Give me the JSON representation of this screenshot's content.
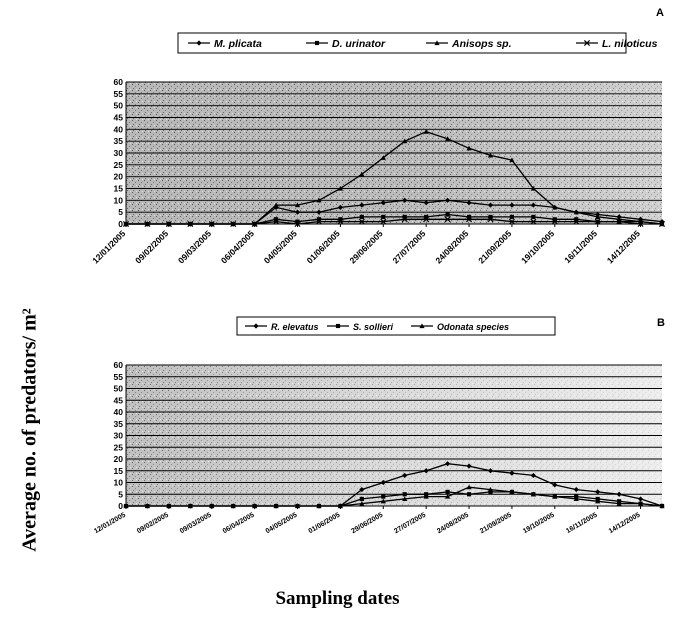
{
  "figure": {
    "ylabel": "Average no. of predators/ m²",
    "xlabel": "Sampling dates"
  },
  "chart_data": [
    {
      "type": "line",
      "panel_label": "A",
      "ylim": [
        0,
        60
      ],
      "yticks": [
        0,
        5,
        10,
        15,
        20,
        25,
        30,
        35,
        40,
        45,
        50,
        55,
        60
      ],
      "grid": true,
      "legend_position": "top",
      "x": [
        "12/01/2005",
        "26/01/2005",
        "09/02/2005",
        "23/02/2005",
        "09/03/2005",
        "23/03/2005",
        "06/04/2005",
        "20/04/2005",
        "04/05/2005",
        "18/05/2005",
        "01/06/2005",
        "15/06/2005",
        "29/06/2005",
        "13/07/2005",
        "27/07/2005",
        "10/08/2005",
        "24/08/2005",
        "07/09/2005",
        "21/09/2005",
        "05/10/2005",
        "19/10/2005",
        "02/11/2005",
        "16/11/2005",
        "30/11/2005",
        "14/12/2005",
        "28/12/2005"
      ],
      "x_tick_labels": [
        "12/01/2005",
        "09/02/2005",
        "09/03/2005",
        "06/04/2005",
        "04/05/2005",
        "01/06/2005",
        "29/06/2005",
        "27/07/2005",
        "24/08/2005",
        "21/09/2005",
        "19/10/2005",
        "16/11/2005",
        "14/12/2005"
      ],
      "series": [
        {
          "name": "M. plicata",
          "marker": "diamond",
          "values": [
            0,
            0,
            0,
            0,
            0,
            0,
            0,
            7,
            5,
            5,
            7,
            8,
            9,
            10,
            9,
            10,
            9,
            8,
            8,
            8,
            7,
            5,
            4,
            3,
            2,
            1
          ]
        },
        {
          "name": "D. urinator",
          "marker": "square",
          "values": [
            0,
            0,
            0,
            0,
            0,
            0,
            0,
            2,
            1,
            2,
            2,
            3,
            3,
            3,
            3,
            4,
            3,
            3,
            3,
            3,
            2,
            2,
            1,
            1,
            1,
            0
          ]
        },
        {
          "name": "Anisops sp.",
          "marker": "triangle",
          "values": [
            0,
            0,
            0,
            0,
            0,
            0,
            0,
            8,
            8,
            10,
            15,
            21,
            28,
            35,
            39,
            36,
            32,
            29,
            27,
            15,
            7,
            5,
            3,
            2,
            1,
            0
          ]
        },
        {
          "name": "L. niloticus",
          "marker": "x",
          "values": [
            0,
            0,
            0,
            0,
            0,
            0,
            0,
            1,
            0,
            1,
            1,
            1,
            1,
            2,
            2,
            2,
            2,
            2,
            1,
            1,
            1,
            1,
            1,
            1,
            0,
            0
          ]
        }
      ]
    },
    {
      "type": "line",
      "panel_label": "B",
      "ylim": [
        0,
        60
      ],
      "yticks": [
        0,
        5,
        10,
        15,
        20,
        25,
        30,
        35,
        40,
        45,
        50,
        55,
        60
      ],
      "grid": true,
      "legend_position": "top",
      "x": [
        "12/01/2005",
        "26/01/2005",
        "09/02/2005",
        "23/02/2005",
        "09/03/2005",
        "23/03/2005",
        "06/04/2005",
        "20/04/2005",
        "04/05/2005",
        "18/05/2005",
        "01/06/2005",
        "15/06/2005",
        "29/06/2005",
        "13/07/2005",
        "27/07/2005",
        "10/08/2005",
        "24/08/2005",
        "07/09/2005",
        "21/09/2005",
        "05/10/2005",
        "19/10/2005",
        "02/11/2005",
        "16/11/2005",
        "30/11/2005",
        "14/12/2005",
        "28/12/2005"
      ],
      "x_tick_labels": [
        "12/01/2005",
        "09/02/2005",
        "09/03/2005",
        "06/04/2005",
        "04/05/2005",
        "01/06/2005",
        "29/06/2005",
        "27/07/2005",
        "24/08/2005",
        "21/09/2005",
        "19/10/2005",
        "16/11/2005",
        "14/12/2005"
      ],
      "series": [
        {
          "name": "R. elevatus",
          "marker": "diamond",
          "values": [
            0,
            0,
            0,
            0,
            0,
            0,
            0,
            0,
            0,
            0,
            0,
            7,
            10,
            13,
            15,
            18,
            17,
            15,
            14,
            13,
            9,
            7,
            6,
            5,
            3,
            0
          ]
        },
        {
          "name": "S. sollieri",
          "marker": "square",
          "values": [
            0,
            0,
            0,
            0,
            0,
            0,
            0,
            0,
            0,
            0,
            0,
            3,
            4,
            5,
            5,
            6,
            5,
            6,
            6,
            5,
            4,
            4,
            3,
            2,
            1,
            0
          ]
        },
        {
          "name": "Odonata species",
          "marker": "triangle",
          "values": [
            0,
            0,
            0,
            0,
            0,
            0,
            0,
            0,
            0,
            0,
            0,
            1,
            2,
            3,
            4,
            4,
            8,
            7,
            6,
            5,
            4,
            3,
            2,
            1,
            1,
            0
          ]
        }
      ]
    }
  ]
}
